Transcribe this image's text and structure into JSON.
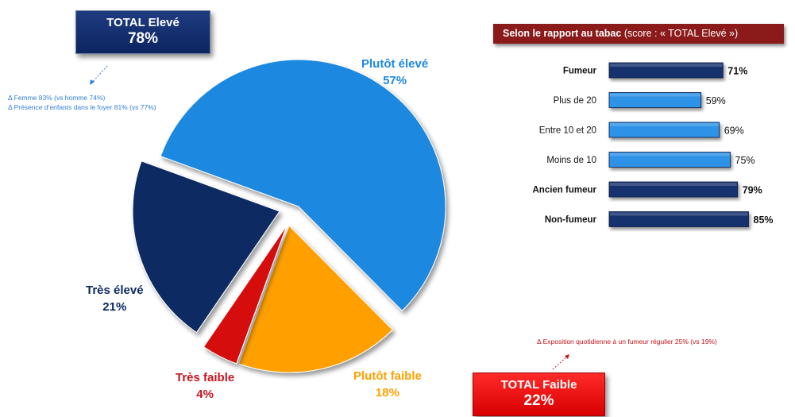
{
  "total_eleve": {
    "label": "TOTAL Elevé",
    "value": "78%"
  },
  "total_faible": {
    "label": "TOTAL Faible",
    "value": "22%"
  },
  "notes_eleve": [
    "Δ    Femme 83% (vs homme 74%)",
    "Δ    Présence d’enfants dans le foyer 81% (vs 77%)"
  ],
  "note_faible": "Δ    Exposition quotidienne  à un fumeur régulier 25% (vs 19%)",
  "tabac_header": {
    "bold": "Selon le rapport au tabac",
    "rest": " (score  : « TOTAL Elevé »)"
  },
  "colors": {
    "plutot_eleve": "#1e88e0",
    "tres_eleve": "#0c2a64",
    "tres_faible": "#d50d0d",
    "plutot_faible": "#ffa000",
    "bar_dark": "#14306e",
    "bar_light": "#2e93e6"
  },
  "chart_data": [
    {
      "type": "pie",
      "slices": [
        {
          "name": "Plutôt élevé",
          "value": 57,
          "label": "57%"
        },
        {
          "name": "Plutôt faible",
          "value": 18,
          "label": "18%"
        },
        {
          "name": "Très faible",
          "value": 4,
          "label": "4%"
        },
        {
          "name": "Très élevé",
          "value": 21,
          "label": "21%"
        }
      ]
    },
    {
      "type": "bar",
      "orientation": "horizontal",
      "categories": [
        "Fumeur",
        "Plus de 20",
        "Entre 10 et 20",
        "Moins de 10",
        "Ancien fumeur",
        "Non-fumeur"
      ],
      "values": [
        71,
        59,
        69,
        75,
        79,
        85
      ],
      "labels": [
        "71%",
        "59%",
        "69%",
        "75%",
        "79%",
        "85%"
      ],
      "shade": [
        "dark",
        "light",
        "light",
        "light",
        "dark",
        "dark"
      ],
      "bold": [
        true,
        false,
        false,
        false,
        true,
        true
      ]
    }
  ]
}
